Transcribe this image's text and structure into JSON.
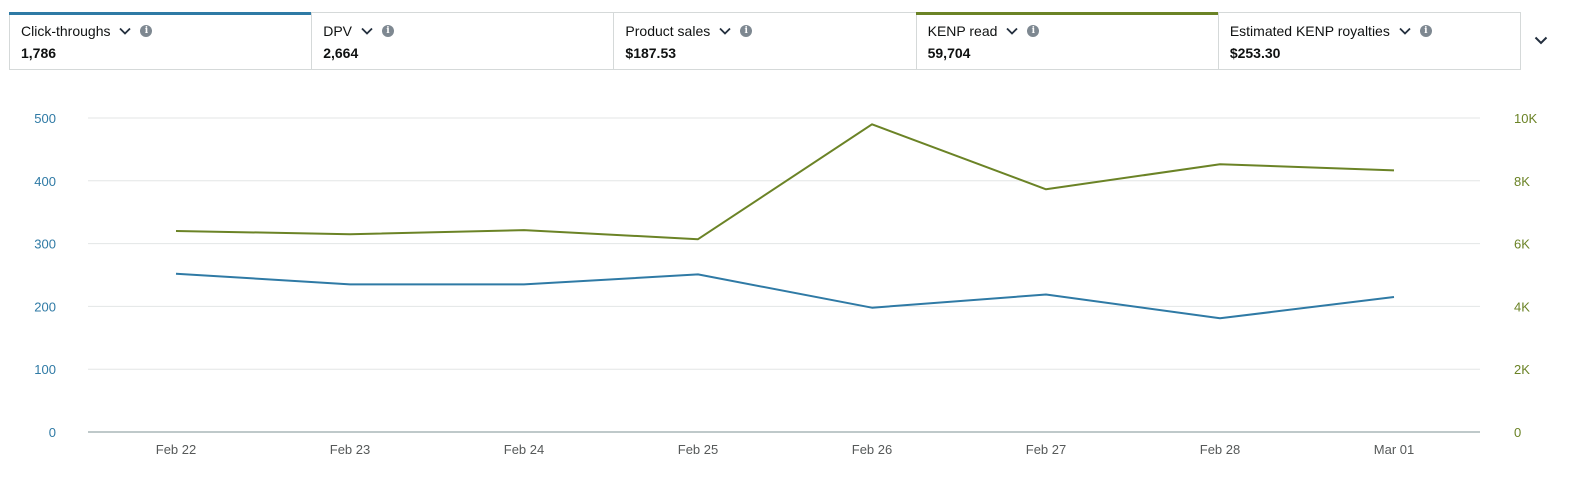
{
  "metrics": [
    {
      "label": "Click-throughs",
      "value": "1,786",
      "accent": "#2f7aa5"
    },
    {
      "label": "DPV",
      "value": "2,664",
      "accent": ""
    },
    {
      "label": "Product sales",
      "value": "$187.53",
      "accent": ""
    },
    {
      "label": "KENP read",
      "value": "59,704",
      "accent": "#6b8326"
    },
    {
      "label": "Estimated KENP royalties",
      "value": "$253.30",
      "accent": ""
    }
  ],
  "icons": {
    "dropdown": "chevron-down-icon",
    "info": "info-icon",
    "expand": "chevron-down-icon"
  },
  "chart_data": {
    "type": "line",
    "categories": [
      "Feb 22",
      "Feb 23",
      "Feb 24",
      "Feb 25",
      "Feb 26",
      "Feb 27",
      "Feb 28",
      "Mar 01"
    ],
    "series": [
      {
        "axis": "left",
        "color": "#2f7aa5",
        "values": [
          252,
          235,
          235,
          251,
          198,
          219,
          181,
          215
        ]
      },
      {
        "axis": "right",
        "color": "#6b8326",
        "values": [
          6400,
          6300,
          6430,
          6140,
          9800,
          7730,
          8530,
          8330
        ]
      }
    ],
    "y_left": {
      "min": 0,
      "max": 500,
      "ticks": [
        0,
        100,
        200,
        300,
        400,
        500
      ],
      "tick_labels": [
        "0",
        "100",
        "200",
        "300",
        "400",
        "500"
      ],
      "color": "#2f7aa5"
    },
    "y_right": {
      "min": 0,
      "max": 10000,
      "ticks": [
        0,
        2000,
        4000,
        6000,
        8000,
        10000
      ],
      "tick_labels": [
        "0",
        "2K",
        "4K",
        "6K",
        "8K",
        "10K"
      ],
      "color": "#6b8326"
    },
    "grid": true,
    "legend": "none"
  }
}
